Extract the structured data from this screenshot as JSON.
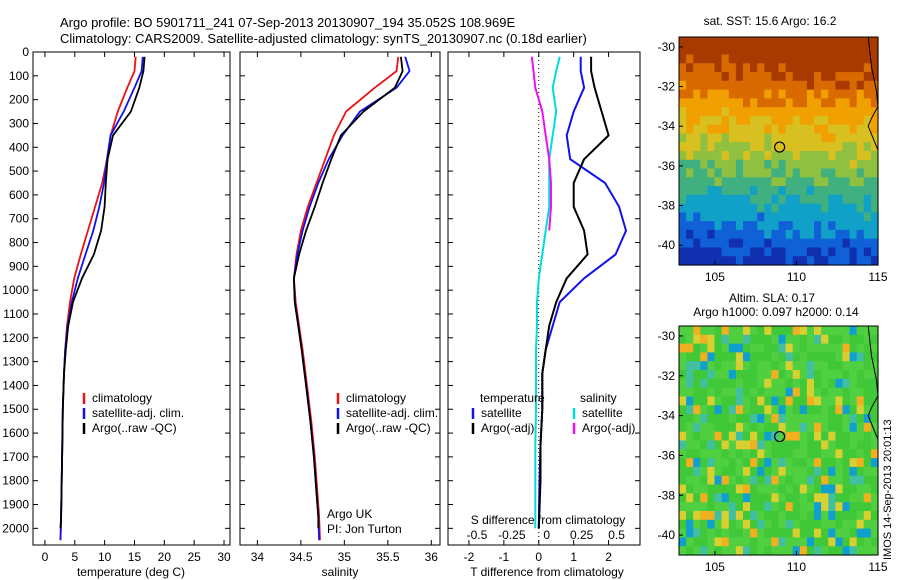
{
  "header": {
    "title_line1": "Argo profile: BO 5901711_241 07-Sep-2013 20130907_194 35.052S 108.969E",
    "title_line2": "Climatology: CARS2009. Satellite-adjusted climatology: synTS_20130907.nc (0.18d earlier)"
  },
  "colors": {
    "climatology": "#ee1111",
    "satellite": "#1111ee",
    "argo": "#000000",
    "sat_salinity": "#00dddd",
    "argo_salinity": "#ee11ee"
  },
  "chart_data": [
    {
      "type": "line",
      "xlabel": "temperature (deg C)",
      "ylabel": "",
      "xlim": [
        -2,
        31
      ],
      "ylim": [
        2070,
        0
      ],
      "y_inverted": true,
      "xticks": [
        0,
        5,
        10,
        15,
        20,
        25,
        30
      ],
      "yticks": [
        0,
        100,
        200,
        300,
        400,
        500,
        600,
        700,
        800,
        900,
        1000,
        1100,
        1200,
        1300,
        1400,
        1500,
        1600,
        1700,
        1800,
        1900,
        2000
      ],
      "legend": [
        "climatology",
        "satellite-adj. clim.",
        "Argo(..raw -QC)"
      ],
      "legend_position": "lower-center",
      "series": [
        {
          "name": "climatology",
          "x": [
            15.2,
            15.0,
            13.8,
            12.2,
            11.0,
            10.4,
            9.6,
            8.4,
            7.2,
            6.0,
            4.9,
            4.2,
            3.7,
            3.4,
            3.2,
            3.0,
            2.9,
            2.8,
            2.7,
            2.6
          ],
          "y": [
            20,
            80,
            150,
            250,
            350,
            450,
            550,
            650,
            750,
            850,
            950,
            1050,
            1150,
            1250,
            1350,
            1500,
            1650,
            1800,
            1950,
            2050
          ]
        },
        {
          "name": "satellite-adj. clim.",
          "x": [
            16.4,
            16.2,
            15.0,
            13.2,
            11.0,
            10.4,
            9.9,
            9.1,
            8.1,
            6.8,
            5.5,
            4.5,
            3.8,
            3.4,
            3.2,
            3.0,
            2.9,
            2.8,
            2.7,
            2.6
          ],
          "y": [
            20,
            80,
            150,
            250,
            350,
            450,
            550,
            650,
            750,
            850,
            950,
            1050,
            1150,
            1250,
            1350,
            1500,
            1650,
            1800,
            1950,
            2050
          ]
        },
        {
          "name": "Argo(..raw -QC)",
          "x": [
            16.7,
            16.5,
            15.8,
            14.4,
            11.4,
            10.5,
            10.2,
            10.0,
            9.4,
            8.2,
            6.2,
            4.7,
            3.9,
            3.5,
            3.2,
            3.0,
            2.9,
            2.8,
            2.7,
            2.6
          ],
          "y": [
            20,
            80,
            150,
            250,
            350,
            450,
            550,
            650,
            750,
            850,
            950,
            1050,
            1150,
            1250,
            1350,
            1500,
            1650,
            1800,
            1950,
            2000
          ]
        }
      ]
    },
    {
      "type": "line",
      "xlabel": "salinity",
      "xlim": [
        33.8,
        36.1
      ],
      "ylim": [
        2070,
        0
      ],
      "y_inverted": true,
      "xticks": [
        34,
        34.5,
        35,
        35.5,
        36
      ],
      "legend": [
        "climatology",
        "satellite-adj. clim.",
        "Argo(..raw -QC)"
      ],
      "legend_position": "lower-right",
      "annotation": [
        "Argo UK",
        "PI: Jon Turton"
      ],
      "series": [
        {
          "name": "climatology",
          "x": [
            35.62,
            35.6,
            35.35,
            35.02,
            34.88,
            34.78,
            34.68,
            34.58,
            34.5,
            34.45,
            34.42,
            34.44,
            34.48,
            34.52,
            34.57,
            34.62,
            34.66,
            34.69,
            34.71,
            34.72
          ],
          "y": [
            20,
            80,
            150,
            250,
            350,
            450,
            550,
            650,
            750,
            850,
            950,
            1050,
            1150,
            1250,
            1400,
            1550,
            1700,
            1850,
            1950,
            2050
          ]
        },
        {
          "name": "satellite-adj. clim.",
          "x": [
            35.7,
            35.75,
            35.6,
            35.18,
            34.98,
            34.82,
            34.7,
            34.6,
            34.52,
            34.46,
            34.42,
            34.43,
            34.47,
            34.51,
            34.56,
            34.61,
            34.65,
            34.68,
            34.7,
            34.71
          ],
          "y": [
            20,
            80,
            150,
            250,
            350,
            450,
            550,
            650,
            750,
            850,
            950,
            1050,
            1150,
            1250,
            1400,
            1550,
            1700,
            1850,
            1950,
            2050
          ]
        },
        {
          "name": "Argo(..raw -QC)",
          "x": [
            35.65,
            35.67,
            35.58,
            35.22,
            34.96,
            34.85,
            34.75,
            34.66,
            34.56,
            34.48,
            34.42,
            34.43,
            34.47,
            34.51,
            34.56,
            34.61,
            34.65,
            34.68,
            34.7,
            34.7
          ],
          "y": [
            20,
            80,
            150,
            250,
            350,
            450,
            550,
            650,
            750,
            850,
            950,
            1050,
            1150,
            1250,
            1400,
            1550,
            1700,
            1850,
            1950,
            2000
          ]
        }
      ]
    },
    {
      "type": "line",
      "xlabel": "T difference from climatology",
      "xlabel_top": "S difference from climatology",
      "xlim": [
        -2.6,
        2.9
      ],
      "ylim": [
        2070,
        0
      ],
      "y_inverted": true,
      "xticks": [
        -2,
        -1,
        0,
        1,
        2
      ],
      "xticks_salinity": [
        "-0.5",
        "-0.25",
        "0",
        "0.25",
        "0.5"
      ],
      "legend_titles": [
        "temperature",
        "salinity"
      ],
      "legend": [
        "satellite",
        "Argo(-adj)",
        "satellite",
        "Argo(-adj)"
      ],
      "legend_position": "lower-center",
      "series": [
        {
          "name": "satellite",
          "x": [
            1.2,
            1.2,
            1.3,
            1.0,
            0.8,
            0.9,
            1.9,
            2.3,
            2.5,
            2.2,
            1.3,
            0.6,
            0.4,
            0.2,
            0.1,
            0.1,
            0.05,
            0.02,
            0.0
          ],
          "y": [
            20,
            80,
            150,
            250,
            350,
            450,
            550,
            650,
            750,
            850,
            950,
            1050,
            1150,
            1250,
            1350,
            1500,
            1650,
            1800,
            2000
          ]
        },
        {
          "name": "Argo(-adj)",
          "x": [
            1.5,
            1.5,
            1.6,
            1.8,
            2.0,
            1.3,
            1.0,
            1.0,
            1.3,
            1.4,
            0.8,
            0.5,
            0.3,
            0.2,
            0.1,
            0.1,
            0.05,
            0.05,
            0.0
          ],
          "y": [
            20,
            80,
            150,
            250,
            350,
            450,
            550,
            650,
            750,
            850,
            950,
            1050,
            1150,
            1250,
            1350,
            1500,
            1650,
            1800,
            2000
          ]
        },
        {
          "name": "satellite",
          "x": [
            0.6,
            0.5,
            0.4,
            0.5,
            0.4,
            0.3,
            0.3,
            0.3,
            0.2,
            0.1,
            0.0,
            -0.05,
            -0.05,
            -0.08,
            -0.08,
            -0.08,
            -0.1,
            -0.1,
            -0.1
          ],
          "y": [
            20,
            80,
            150,
            250,
            350,
            450,
            550,
            650,
            750,
            850,
            950,
            1050,
            1150,
            1250,
            1350,
            1500,
            1650,
            1800,
            2000
          ]
        },
        {
          "name": "Argo(-adj)",
          "x": [
            -0.2,
            -0.15,
            -0.1,
            0.1,
            0.2,
            0.3,
            0.35,
            0.35,
            0.3
          ],
          "y": [
            20,
            80,
            150,
            250,
            350,
            450,
            550,
            650,
            750
          ]
        }
      ]
    },
    {
      "type": "heatmap",
      "title": "sat. SST: 15.6 Argo: 16.2",
      "xlim": [
        102.8,
        115
      ],
      "ylim": [
        -41,
        -29.5
      ],
      "xticks": [
        105,
        110,
        115
      ],
      "yticks": [
        -30,
        -32,
        -34,
        -36,
        -38,
        -40
      ],
      "marker": {
        "lon": 108.969,
        "lat": -35.052
      }
    },
    {
      "type": "heatmap",
      "title_line1": "Altim. SLA: 0.17",
      "title_line2": "Argo h1000: 0.097 h2000: 0.14",
      "xlim": [
        102.8,
        115
      ],
      "ylim": [
        -41,
        -29.5
      ],
      "xticks": [
        105,
        110,
        115
      ],
      "yticks": [
        -30,
        -32,
        -34,
        -36,
        -38,
        -40
      ],
      "marker": {
        "lon": 108.969,
        "lat": -35.052
      }
    }
  ],
  "footer_vertical": "IMOS 14-Sep-2013 20:01:13"
}
